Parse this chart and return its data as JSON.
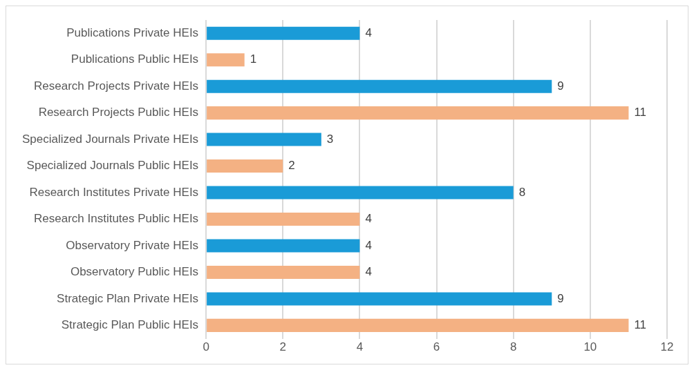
{
  "chart_data": {
    "type": "bar",
    "orientation": "horizontal",
    "categories": [
      "Publications Private HEIs",
      "Publications Public HEIs",
      "Research Projects Private HEIs",
      "Research Projects Public HEIs",
      "Specialized Journals Private HEIs",
      "Specialized Journals Public HEIs",
      "Research Institutes Private HEIs",
      "Research Institutes Public HEIs",
      "Observatory Private HEIs",
      "Observatory Public HEIs",
      "Strategic Plan Private HEIs",
      "Strategic Plan Public HEIs"
    ],
    "values": [
      4,
      1,
      9,
      11,
      3,
      2,
      8,
      4,
      4,
      4,
      9,
      11
    ],
    "colors": [
      "#1a9bd7",
      "#f4b183",
      "#1a9bd7",
      "#f4b183",
      "#1a9bd7",
      "#f4b183",
      "#1a9bd7",
      "#f4b183",
      "#1a9bd7",
      "#f4b183",
      "#1a9bd7",
      "#f4b183"
    ],
    "xlim": [
      0,
      12
    ],
    "xticks": [
      0,
      2,
      4,
      6,
      8,
      10,
      12
    ],
    "grid": "x",
    "legend": false,
    "data_labels": true
  }
}
